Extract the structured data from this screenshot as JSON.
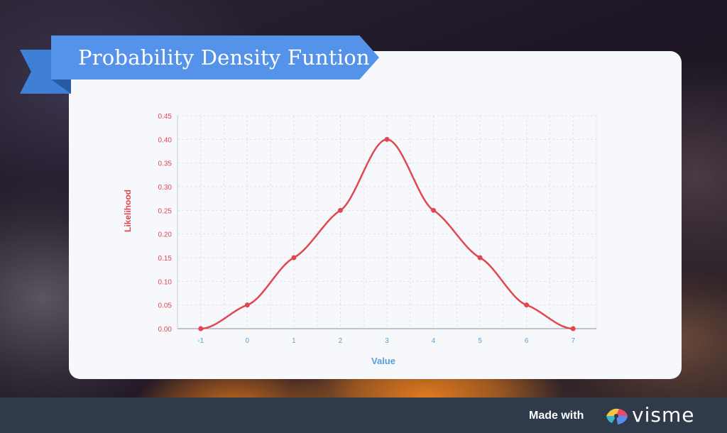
{
  "chart_data": {
    "type": "line",
    "title": "Probability Density Funtion",
    "xlabel": "Value",
    "ylabel": "Likelihood",
    "x": [
      -1,
      0,
      1,
      2,
      3,
      4,
      5,
      6,
      7
    ],
    "series": [
      {
        "values": [
          0.0,
          0.05,
          0.15,
          0.25,
          0.4,
          0.25,
          0.15,
          0.05,
          0.0
        ]
      }
    ],
    "x_ticks": [
      "-1",
      "0",
      "1",
      "2",
      "3",
      "4",
      "5",
      "6",
      "7"
    ],
    "y_ticks": [
      "0.00",
      "0.05",
      "0.10",
      "0.15",
      "0.20",
      "0.25",
      "0.30",
      "0.35",
      "0.40",
      "0.45"
    ],
    "xlim": [
      -1.5,
      7.5
    ],
    "ylim": [
      0,
      0.45
    ],
    "grid": true,
    "smooth": true
  },
  "colors": {
    "line": "#e0474f",
    "x_axis_text": "#5a9fd4",
    "y_axis_text": "#e0474f",
    "banner": "#5592ea",
    "footer": "#2f3b4a"
  },
  "footer": {
    "made_with": "Made with",
    "brand": "visme"
  }
}
